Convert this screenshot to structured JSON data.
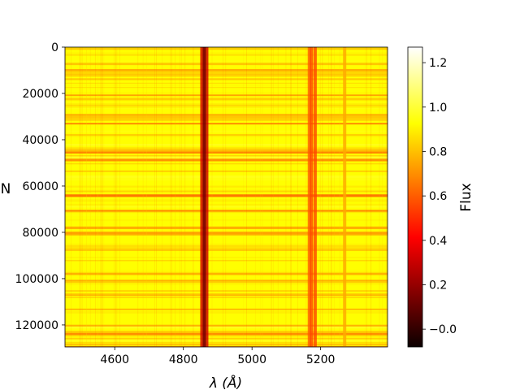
{
  "chart_data": {
    "type": "heatmap",
    "title": "",
    "xlabel": "λ (Å)",
    "ylabel": "N",
    "colorbar_label": "Flux",
    "colormap": "hot",
    "xlim": [
      4455,
      5395
    ],
    "ylim": [
      129500,
      0
    ],
    "xticks": [
      4600,
      4800,
      5000,
      5200
    ],
    "yticks": [
      0,
      20000,
      40000,
      60000,
      80000,
      100000,
      120000
    ],
    "clim": [
      -0.08,
      1.27
    ],
    "colorbar_ticks": [
      0.0,
      0.2,
      0.4,
      0.6,
      0.8,
      1.0,
      1.2
    ],
    "colorbar_tick_labels": [
      "−0.0",
      "0.2",
      "0.4",
      "0.6",
      "0.8",
      "1.0",
      "1.2"
    ],
    "continuum_flux": 1.0,
    "absorption_lines": [
      {
        "wavelength": 4861,
        "min_flux": 0.3
      },
      {
        "wavelength": 5167,
        "min_flux": 0.6
      },
      {
        "wavelength": 5173,
        "min_flux": 0.55
      },
      {
        "wavelength": 5184,
        "min_flux": 0.55
      },
      {
        "wavelength": 5270,
        "min_flux": 0.75
      }
    ],
    "grid": false
  }
}
